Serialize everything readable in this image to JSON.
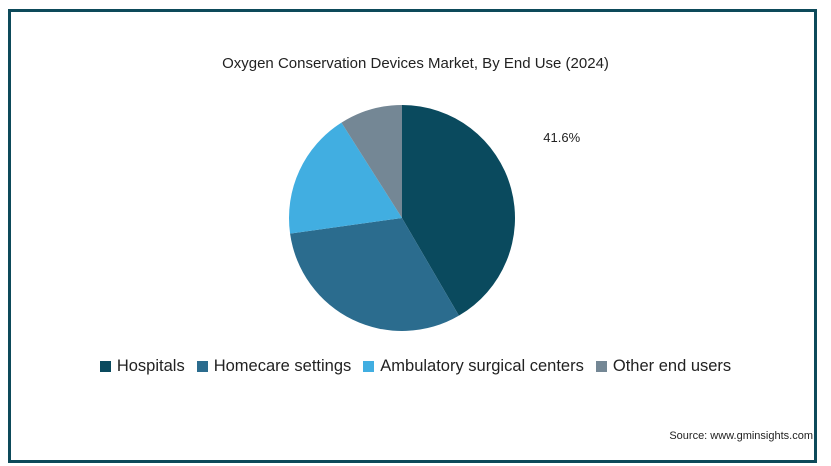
{
  "chart_data": {
    "type": "pie",
    "title": "Oxygen Conservation Devices Market, By End Use (2024)",
    "labels": [
      "Hospitals",
      "Homecare settings",
      "Ambulatory surgical centers",
      "Other end users"
    ],
    "values": [
      41.6,
      31.2,
      18.2,
      9.0
    ],
    "colors": [
      "#0a4a5e",
      "#2b6c8e",
      "#41aee1",
      "#748795"
    ],
    "data_labels": [
      "41.6%",
      "",
      "",
      ""
    ],
    "legend_position": "bottom"
  },
  "source": "Source: www.gminsights.com"
}
